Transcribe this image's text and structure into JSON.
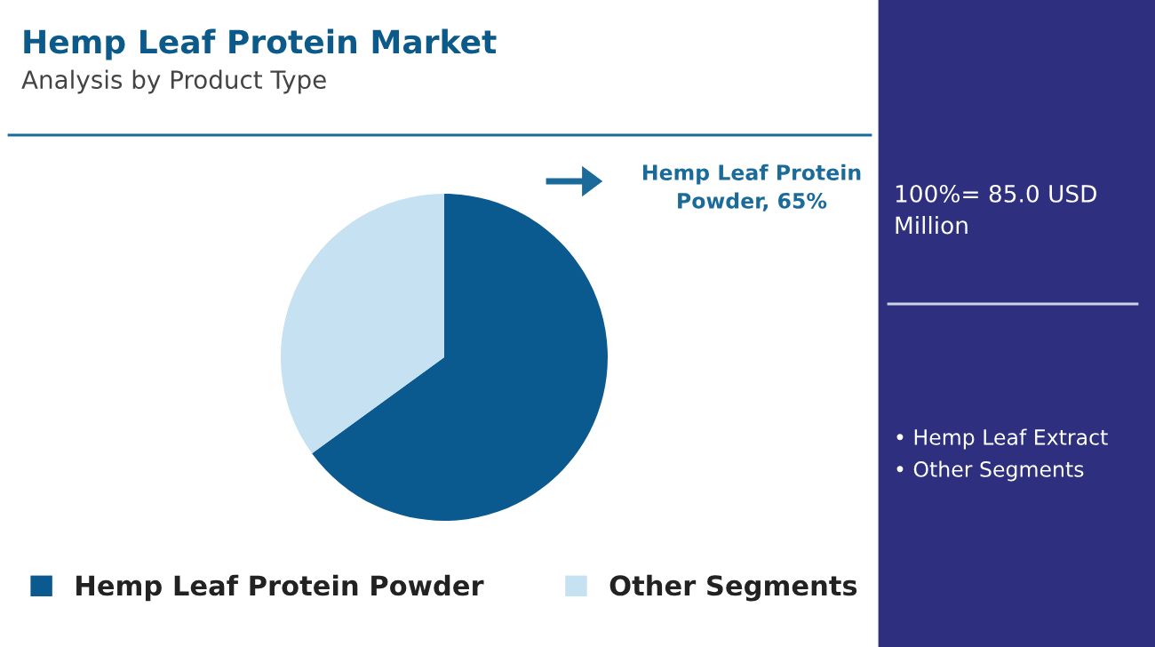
{
  "chart_data": {
    "type": "pie",
    "title": "Hemp Leaf Protein Market",
    "subtitle": "Analysis by Product Type",
    "categories": [
      "Hemp Leaf Protein Powder",
      "Other Segments"
    ],
    "values": [
      65,
      35
    ],
    "colors": [
      "#0a5a8f",
      "#c6e1f1"
    ],
    "legend": "bottom",
    "annotations": [
      "Hemp Leaf Protein Powder, 65%",
      "100%= 85.0 USD Million",
      "• Hemp Leaf Extract",
      "• Other Segments"
    ]
  }
}
